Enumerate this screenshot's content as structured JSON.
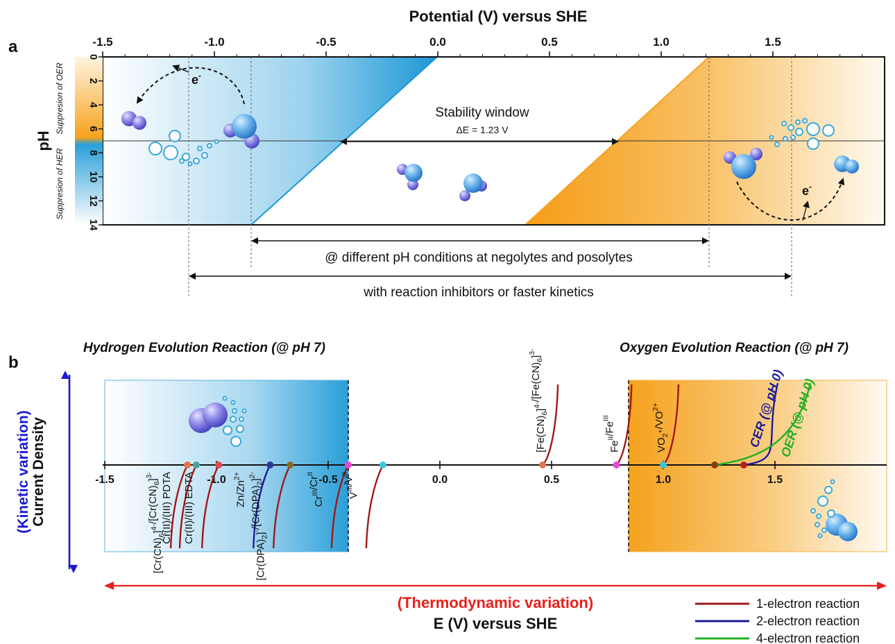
{
  "panel_a": {
    "letter": "a",
    "axis_title": "Potential (V) versus SHE",
    "ph_label": "pH",
    "ticks": [
      {
        "v": -1.5,
        "label": "-1.5"
      },
      {
        "v": -1.0,
        "label": "-1.0"
      },
      {
        "v": -0.5,
        "label": "-0.5"
      },
      {
        "v": 0.0,
        "label": "0.0"
      },
      {
        "v": 0.5,
        "label": "0.5"
      },
      {
        "v": 1.0,
        "label": "1.0"
      },
      {
        "v": 1.5,
        "label": "1.5"
      }
    ],
    "ph_ticks": [
      {
        "v": 0,
        "label": "0"
      },
      {
        "v": 2,
        "label": "2"
      },
      {
        "v": 4,
        "label": "4"
      },
      {
        "v": 6,
        "label": "6"
      },
      {
        "v": 8,
        "label": "8"
      },
      {
        "v": 10,
        "label": "10"
      },
      {
        "v": 12,
        "label": "12"
      },
      {
        "v": 14,
        "label": "14"
      }
    ],
    "oer_label": "Suppresion of OER",
    "her_label": "Suppresion of HER",
    "stability_title": "Stability window",
    "stability_value": "ΔE = 1.23 V",
    "electron_label": "e",
    "electron_sup": "-",
    "arrow1_label": "@ different pH conditions at negolytes and posolytes",
    "arrow2_label": "with reaction inhibitors or faster kinetics",
    "colors": {
      "blue": "#2a9fd8",
      "orange": "#f5a623"
    }
  },
  "panel_b": {
    "letter": "b",
    "her_title": "Hydrogen Evolution Reaction (@ pH 7)",
    "oer_title": "Oxygen Evolution Reaction (@ pH 7)",
    "kinetic_label": "(Kinetic variation)",
    "current_label": "Current Density",
    "thermo_label": "(Thermodynamic variation)",
    "e_axis_label": "E (V) versus SHE",
    "ticks": [
      {
        "v": -1.5,
        "label": "-1.5"
      },
      {
        "v": -1.0,
        "label": "-1.0"
      },
      {
        "v": -0.5,
        "label": "-0.5"
      },
      {
        "v": 0.0,
        "label": "0.0"
      },
      {
        "v": 0.5,
        "label": "0.5"
      },
      {
        "v": 1.0,
        "label": "1.0"
      },
      {
        "v": 1.5,
        "label": "1.5"
      }
    ],
    "couples_below": [
      {
        "id": "cr-cn",
        "e": -1.13,
        "color": "#e8734a",
        "type": 1,
        "base": "[Cr(CN)",
        "s1": "6",
        "mid": "]",
        "sup1": "4-",
        "rest": "/[Cr(CN)",
        "s2": "6",
        "end": "]",
        "sup2": "3-"
      },
      {
        "id": "cr-pdta",
        "e": -1.09,
        "color": "#4aa3a0",
        "type": 1,
        "base": "Cr(II)/(III) PDTA"
      },
      {
        "id": "cr-edta",
        "e": -0.99,
        "color": "#e24a4a",
        "type": 1,
        "base": "Cr(II)/(III) EDTA"
      },
      {
        "id": "zn",
        "e": -0.76,
        "color": "#2a3a9a",
        "type": 2,
        "base": "Zn/Zn",
        "sup1": "2+"
      },
      {
        "id": "cr-dpa",
        "e": -0.67,
        "color": "#8a6a2a",
        "type": 1,
        "base": "[Cr(DPA)",
        "s1": "2",
        "mid": "]",
        "sup1": "-",
        "rest": "/[Cr(DPA)",
        "s2": "2",
        "end": "]",
        "sup2": "2-"
      },
      {
        "id": "cr3-cr2",
        "e": -0.41,
        "color": "#e64ad8",
        "type": 1,
        "base": "Cr",
        "sup1": "III",
        "rest": "/Cr",
        "sup2": "II"
      },
      {
        "id": "v3-v2",
        "e": -0.255,
        "color": "#36c8e0",
        "type": 1,
        "base": "V",
        "sup1": "III",
        "rest": "/V",
        "sup2": "II"
      }
    ],
    "couples_above": [
      {
        "id": "fe-cn",
        "e": 0.46,
        "color": "#e8734a",
        "type": 1,
        "base": "[Fe(CN)",
        "s1": "6",
        "mid": "]",
        "sup1": "4-",
        "rest": "/[Fe(CN)",
        "s2": "6",
        "end": "]",
        "sup2": "3-"
      },
      {
        "id": "fe2-fe3",
        "e": 0.79,
        "color": "#e64ad8",
        "type": 1,
        "base": "Fe",
        "sup1": "II",
        "rest": "/Fe",
        "sup2": "III"
      },
      {
        "id": "vo2",
        "e": 1.0,
        "color": "#36c8e0",
        "type": 1,
        "base": "VO",
        "s1": "2",
        "sup1": "+",
        "rest": "/VO",
        "sup2": "2+"
      },
      {
        "id": "cer",
        "e": 1.36,
        "color": "#b52020",
        "type": 2,
        "base": "CER (@ pH 0)"
      },
      {
        "id": "oer",
        "e": 1.23,
        "color": "#8a3a10",
        "type": 4,
        "base": "OER (@ pH 0)"
      }
    ],
    "legend": [
      {
        "label": "1-electron reaction",
        "color": "#a01818"
      },
      {
        "label": "2-electron reaction",
        "color": "#1a1a9a"
      },
      {
        "label": "4-electron reaction",
        "color": "#22b022"
      }
    ]
  }
}
